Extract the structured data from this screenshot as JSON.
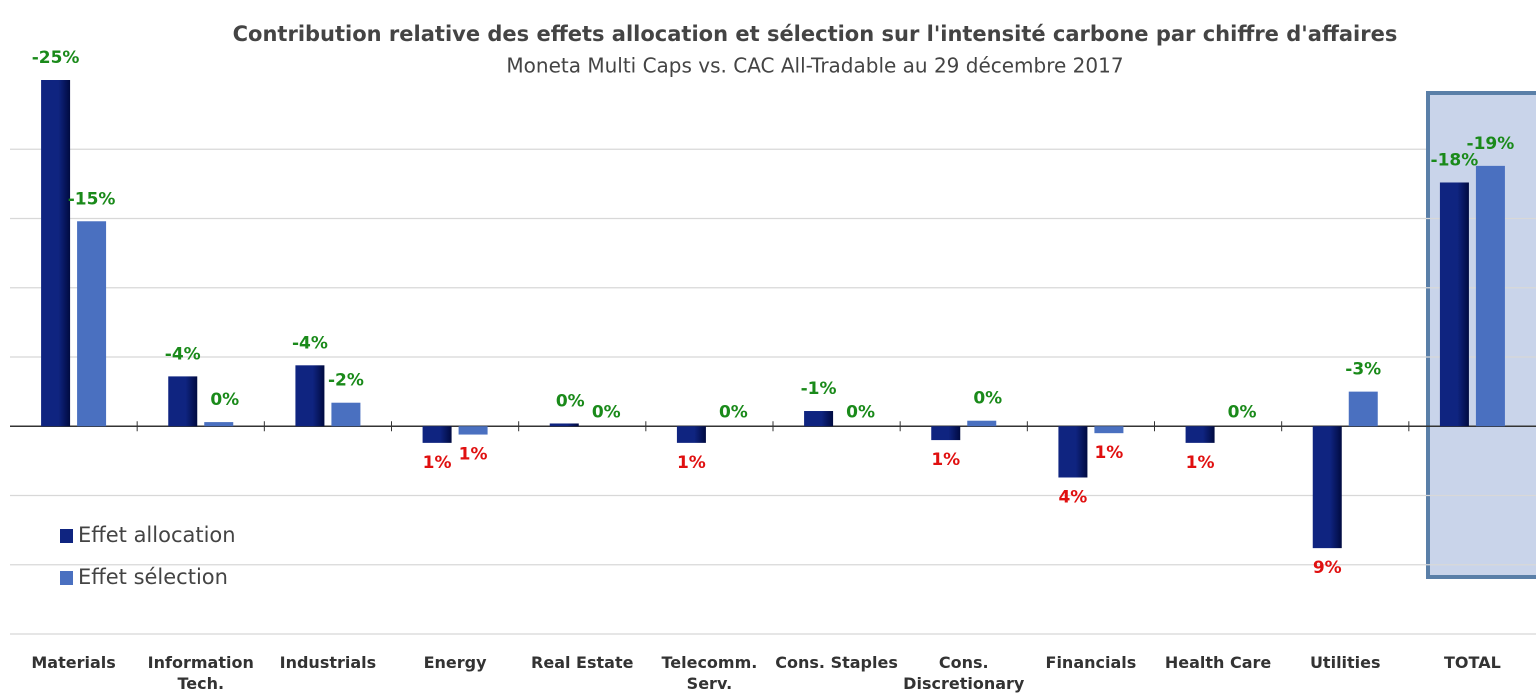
{
  "chart_data": {
    "type": "bar",
    "title": "Contribution relative des effets allocation et sélection sur l'intensité carbone par chiffre d'affaires",
    "subtitle": "Moneta Multi Caps vs. CAC All-Tradable au 29 décembre 2017",
    "categories": [
      "Materials",
      "Information Tech.",
      "Industrials",
      "Energy",
      "Real Estate",
      "Telecomm. Serv.",
      "Cons. Staples",
      "Cons. Discretionary",
      "Financials",
      "Health Care",
      "Utilities",
      "TOTAL"
    ],
    "series": [
      {
        "name": "Effet allocation",
        "color": "#0f2480",
        "values": [
          -25,
          -3.6,
          -4.4,
          1.2,
          -0.2,
          1.2,
          -1.1,
          1,
          3.7,
          1.2,
          8.8,
          -17.6
        ],
        "value_labels": [
          "-25%",
          "-4%",
          "-4%",
          "1%",
          "0%",
          "1%",
          "-1%",
          "1%",
          "4%",
          "1%",
          "9%",
          "-18%"
        ]
      },
      {
        "name": "Effet sélection",
        "color": "#4a70c0",
        "values": [
          -14.8,
          -0.3,
          -1.7,
          0.6,
          0,
          0,
          0,
          -0.4,
          0.5,
          0,
          -2.5,
          -18.8
        ],
        "value_labels": [
          "-15%",
          "0%",
          "-2%",
          "1%",
          "0%",
          "0%",
          "0%",
          "0%",
          "1%",
          "0%",
          "-3%",
          "-19%"
        ]
      }
    ],
    "ylim": [
      -25,
      15
    ],
    "yticks": [
      -20,
      -15,
      -10,
      -5,
      0,
      5,
      10,
      15
    ],
    "y_inverted": true,
    "grid": true,
    "negative_label_color": "#1a8a1a",
    "positive_label_color": "#e01010",
    "legend": "lower left"
  }
}
